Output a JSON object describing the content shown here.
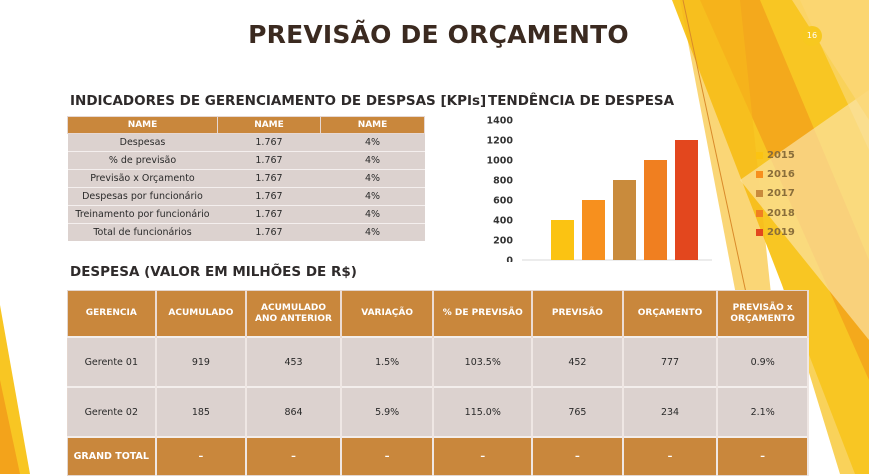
{
  "slide_number": "16",
  "title": "PREVISÃO DE ORÇAMENTO",
  "kpi_section": {
    "title": "INDICADORES DE GERENCIAMENTO DE DESPSAS [KPIs]",
    "headers": [
      "NAME",
      "NAME",
      "NAME"
    ],
    "rows": [
      [
        "Despesas",
        "1.767",
        "4%"
      ],
      [
        "% de previsão",
        "1.767",
        "4%"
      ],
      [
        "Previsão x Orçamento",
        "1.767",
        "4%"
      ],
      [
        "Despesas por funcionário",
        "1.767",
        "4%"
      ],
      [
        "Treinamento por funcionário",
        "1.767",
        "4%"
      ],
      [
        "Total de funcionários",
        "1.767",
        "4%"
      ]
    ]
  },
  "chart_section": {
    "title": "TENDÊNCIA DE DESPESA"
  },
  "chart_data": {
    "type": "bar",
    "categories": [
      "2015",
      "2016",
      "2017",
      "2018",
      "2019"
    ],
    "values": [
      400,
      600,
      800,
      1000,
      1200
    ],
    "colors": [
      "#fbc312",
      "#f7901e",
      "#c98b3c",
      "#f07f20",
      "#e3471e"
    ],
    "ylim": [
      0,
      1400
    ],
    "yticks": [
      "0",
      "200",
      "400",
      "600",
      "800",
      "1000",
      "1200",
      "1400"
    ],
    "grid": false,
    "legend_position": "right",
    "legend": [
      "2015",
      "2016",
      "2017",
      "2018",
      "2019"
    ]
  },
  "despesa_section": {
    "title": "DESPESA (VALOR EM MILHÕES DE R$)",
    "headers": [
      "GERENCIA",
      "ACUMULADO",
      "ACUMULADO ANO ANTERIOR",
      "VARIAÇÃO",
      "% DE PREVISÃO",
      "PREVISÃO",
      "ORÇAMENTO",
      "PREVISÃO x ORÇAMENTO"
    ],
    "rows": [
      [
        "Gerente 01",
        "919",
        "453",
        "1.5%",
        "103.5%",
        "452",
        "777",
        "0.9%"
      ],
      [
        "Gerente 02",
        "185",
        "864",
        "5.9%",
        "115.0%",
        "765",
        "234",
        "2.1%"
      ]
    ],
    "total_row": [
      "GRAND TOTAL",
      "–",
      "–",
      "–",
      "–",
      "–",
      "–",
      "–"
    ]
  }
}
